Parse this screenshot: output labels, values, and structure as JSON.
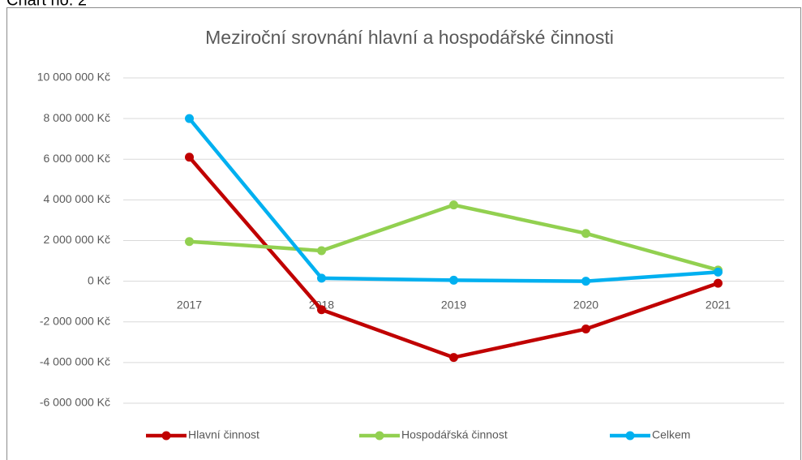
{
  "caption": "Chart no. 2",
  "chart_data": {
    "type": "line",
    "title": "Meziroční srovnání hlavní a hospodářské činnosti",
    "categories": [
      "2017",
      "2018",
      "2019",
      "2020",
      "2021"
    ],
    "series": [
      {
        "name": "Hlavní činnost",
        "color": "#c00000",
        "values": [
          6100000,
          -1400000,
          -3750000,
          -2350000,
          -100000
        ]
      },
      {
        "name": "Hospodářská činnost",
        "color": "#92d050",
        "values": [
          1950000,
          1500000,
          3750000,
          2350000,
          550000
        ]
      },
      {
        "name": "Celkem",
        "color": "#00b0f0",
        "values": [
          8000000,
          150000,
          50000,
          0,
          450000
        ]
      }
    ],
    "ylim": [
      -6000000,
      10000000
    ],
    "yticks": [
      {
        "value": -6000000,
        "label": "-6 000 000 Kč"
      },
      {
        "value": -4000000,
        "label": "-4 000 000 Kč"
      },
      {
        "value": -2000000,
        "label": "-2 000 000 Kč"
      },
      {
        "value": 0,
        "label": "0 Kč"
      },
      {
        "value": 2000000,
        "label": "2 000 000 Kč"
      },
      {
        "value": 4000000,
        "label": "4 000 000 Kč"
      },
      {
        "value": 6000000,
        "label": "6 000 000 Kč"
      },
      {
        "value": 8000000,
        "label": "8 000 000 Kč"
      },
      {
        "value": 10000000,
        "label": "10 000 000 Kč"
      }
    ],
    "grid": true,
    "legend": "bottom"
  }
}
